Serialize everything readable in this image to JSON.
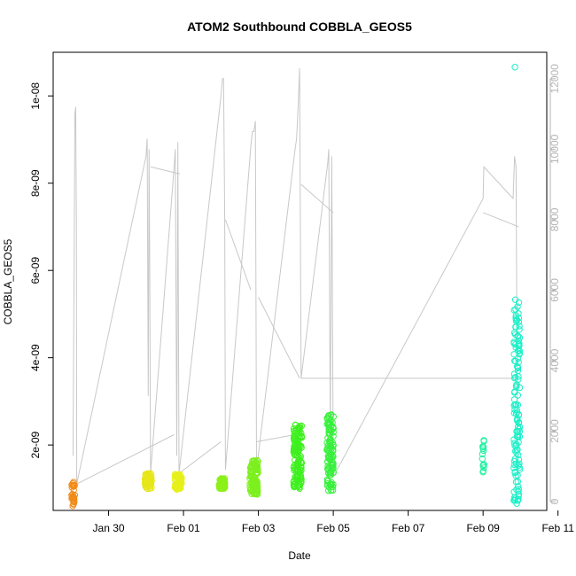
{
  "chart_data": {
    "type": "scatter",
    "title": "ATOM2 Southbound COBBLA_GEOS5",
    "xlabel": "Date",
    "ylabel": "COBBLA_GEOS5",
    "x_ticks": [
      "Jan 30",
      "Feb 01",
      "Feb 03",
      "Feb 05",
      "Feb 07",
      "Feb 09",
      "Feb 11"
    ],
    "y_ticks_left": [
      "2e-09",
      "4e-09",
      "6e-09",
      "8e-09",
      "1e-08"
    ],
    "y_ticks_right": [
      "0",
      "2000",
      "4000",
      "6000",
      "8000",
      "10000",
      "12000"
    ],
    "x_range_days_from_jan30": [
      -1.48,
      11.7
    ],
    "y_range_left": [
      5e-10,
      1.1e-08
    ],
    "y_range_right": [
      -250,
      12750
    ],
    "grid": false,
    "colors": {
      "altitude_line": "#c8c8c8",
      "right_axis": "#b5b5b5"
    },
    "altitude_series": {
      "name": "",
      "axis": "right",
      "points": [
        [
          -0.95,
          1300
        ],
        [
          -0.92,
          7000
        ],
        [
          -0.9,
          11000
        ],
        [
          -0.88,
          11200
        ],
        [
          -0.86,
          8000
        ],
        [
          -0.85,
          500
        ],
        [
          1.0,
          9800
        ],
        [
          1.03,
          10300
        ],
        [
          1.06,
          3000
        ],
        [
          1.08,
          10000
        ],
        [
          1.1,
          6500
        ],
        [
          1.12,
          800
        ],
        [
          1.75,
          9500
        ],
        [
          1.78,
          10000
        ],
        [
          1.82,
          1300
        ],
        [
          1.85,
          10200
        ],
        [
          1.88,
          800
        ],
        [
          3.0,
          11500
        ],
        [
          3.04,
          12000
        ],
        [
          3.07,
          12000
        ],
        [
          3.1,
          8000
        ],
        [
          3.12,
          900
        ],
        [
          3.8,
          10100
        ],
        [
          3.84,
          10500
        ],
        [
          3.88,
          10500
        ],
        [
          3.92,
          10800
        ],
        [
          3.95,
          900
        ],
        [
          4.98,
          10000
        ],
        [
          5.02,
          10300
        ],
        [
          5.06,
          11200
        ],
        [
          5.1,
          12300
        ],
        [
          5.14,
          3500
        ],
        [
          5.85,
          9600
        ],
        [
          5.88,
          10000
        ],
        [
          5.92,
          2000
        ],
        [
          5.96,
          9800
        ],
        [
          6.0,
          700
        ],
        [
          10.0,
          8600
        ],
        [
          10.02,
          9500
        ],
        [
          10.8,
          8600
        ],
        [
          10.84,
          9800
        ],
        [
          10.88,
          9500
        ],
        [
          10.92,
          1500
        ],
        [
          10.95,
          600
        ]
      ],
      "connectors": [
        [
          [
            -0.85,
            500
          ],
          [
            1.75,
            1900
          ]
        ],
        [
          [
            1.12,
            9500
          ],
          [
            1.9,
            9300
          ]
        ],
        [
          [
            1.88,
            800
          ],
          [
            3.0,
            1700
          ]
        ],
        [
          [
            3.12,
            8000
          ],
          [
            3.8,
            6000
          ]
        ],
        [
          [
            3.95,
            1700
          ],
          [
            4.98,
            1900
          ]
        ],
        [
          [
            5.14,
            9000
          ],
          [
            6.0,
            8200
          ]
        ],
        [
          [
            4.0,
            5800
          ],
          [
            5.1,
            3500
          ]
        ],
        [
          [
            5.14,
            3500
          ],
          [
            10.95,
            3500
          ]
        ],
        [
          [
            10.0,
            8200
          ],
          [
            10.95,
            7800
          ]
        ]
      ]
    },
    "series": [
      {
        "name": "",
        "color": "#f08c1a",
        "x_center": -0.95,
        "x_spread": 0.05,
        "y_min": 5.9e-10,
        "y_max": 1.15e-09,
        "count": 30
      },
      {
        "name": "",
        "color": "#e6e61a",
        "x_center": 1.06,
        "x_spread": 0.09,
        "y_min": 1e-09,
        "y_max": 1.35e-09,
        "count": 80
      },
      {
        "name": "",
        "color": "#e6f01a",
        "x_center": 1.86,
        "x_spread": 0.09,
        "y_min": 9.8e-10,
        "y_max": 1.33e-09,
        "count": 80
      },
      {
        "name": "",
        "color": "#8cf01a",
        "x_center": 3.03,
        "x_spread": 0.08,
        "y_min": 1e-09,
        "y_max": 1.24e-09,
        "count": 60
      },
      {
        "name": "",
        "color": "#7cf01e",
        "x_center": 3.88,
        "x_spread": 0.11,
        "y_min": 8.6e-10,
        "y_max": 1.65e-09,
        "count": 110
      },
      {
        "name": "",
        "color": "#3ef01e",
        "x_center": 5.05,
        "x_spread": 0.11,
        "y_min": 1e-09,
        "y_max": 2.5e-09,
        "count": 130
      },
      {
        "name": "",
        "color": "#37f03c",
        "x_center": 5.92,
        "x_spread": 0.09,
        "y_min": 9.5e-10,
        "y_max": 2.75e-09,
        "count": 110
      },
      {
        "name": "",
        "color": "#1ef0a0",
        "x_center": 10.0,
        "x_spread": 0.03,
        "y_min": 1.35e-09,
        "y_max": 2.15e-09,
        "count": 14
      },
      {
        "name": "",
        "color": "#1ef0c8",
        "x_center": 10.9,
        "x_spread": 0.08,
        "y_min": 6.5e-10,
        "y_max": 5.35e-09,
        "count": 130
      }
    ],
    "outliers": [
      {
        "x": 10.85,
        "y": 1.066e-08,
        "color": "#1ef0c8"
      }
    ]
  }
}
